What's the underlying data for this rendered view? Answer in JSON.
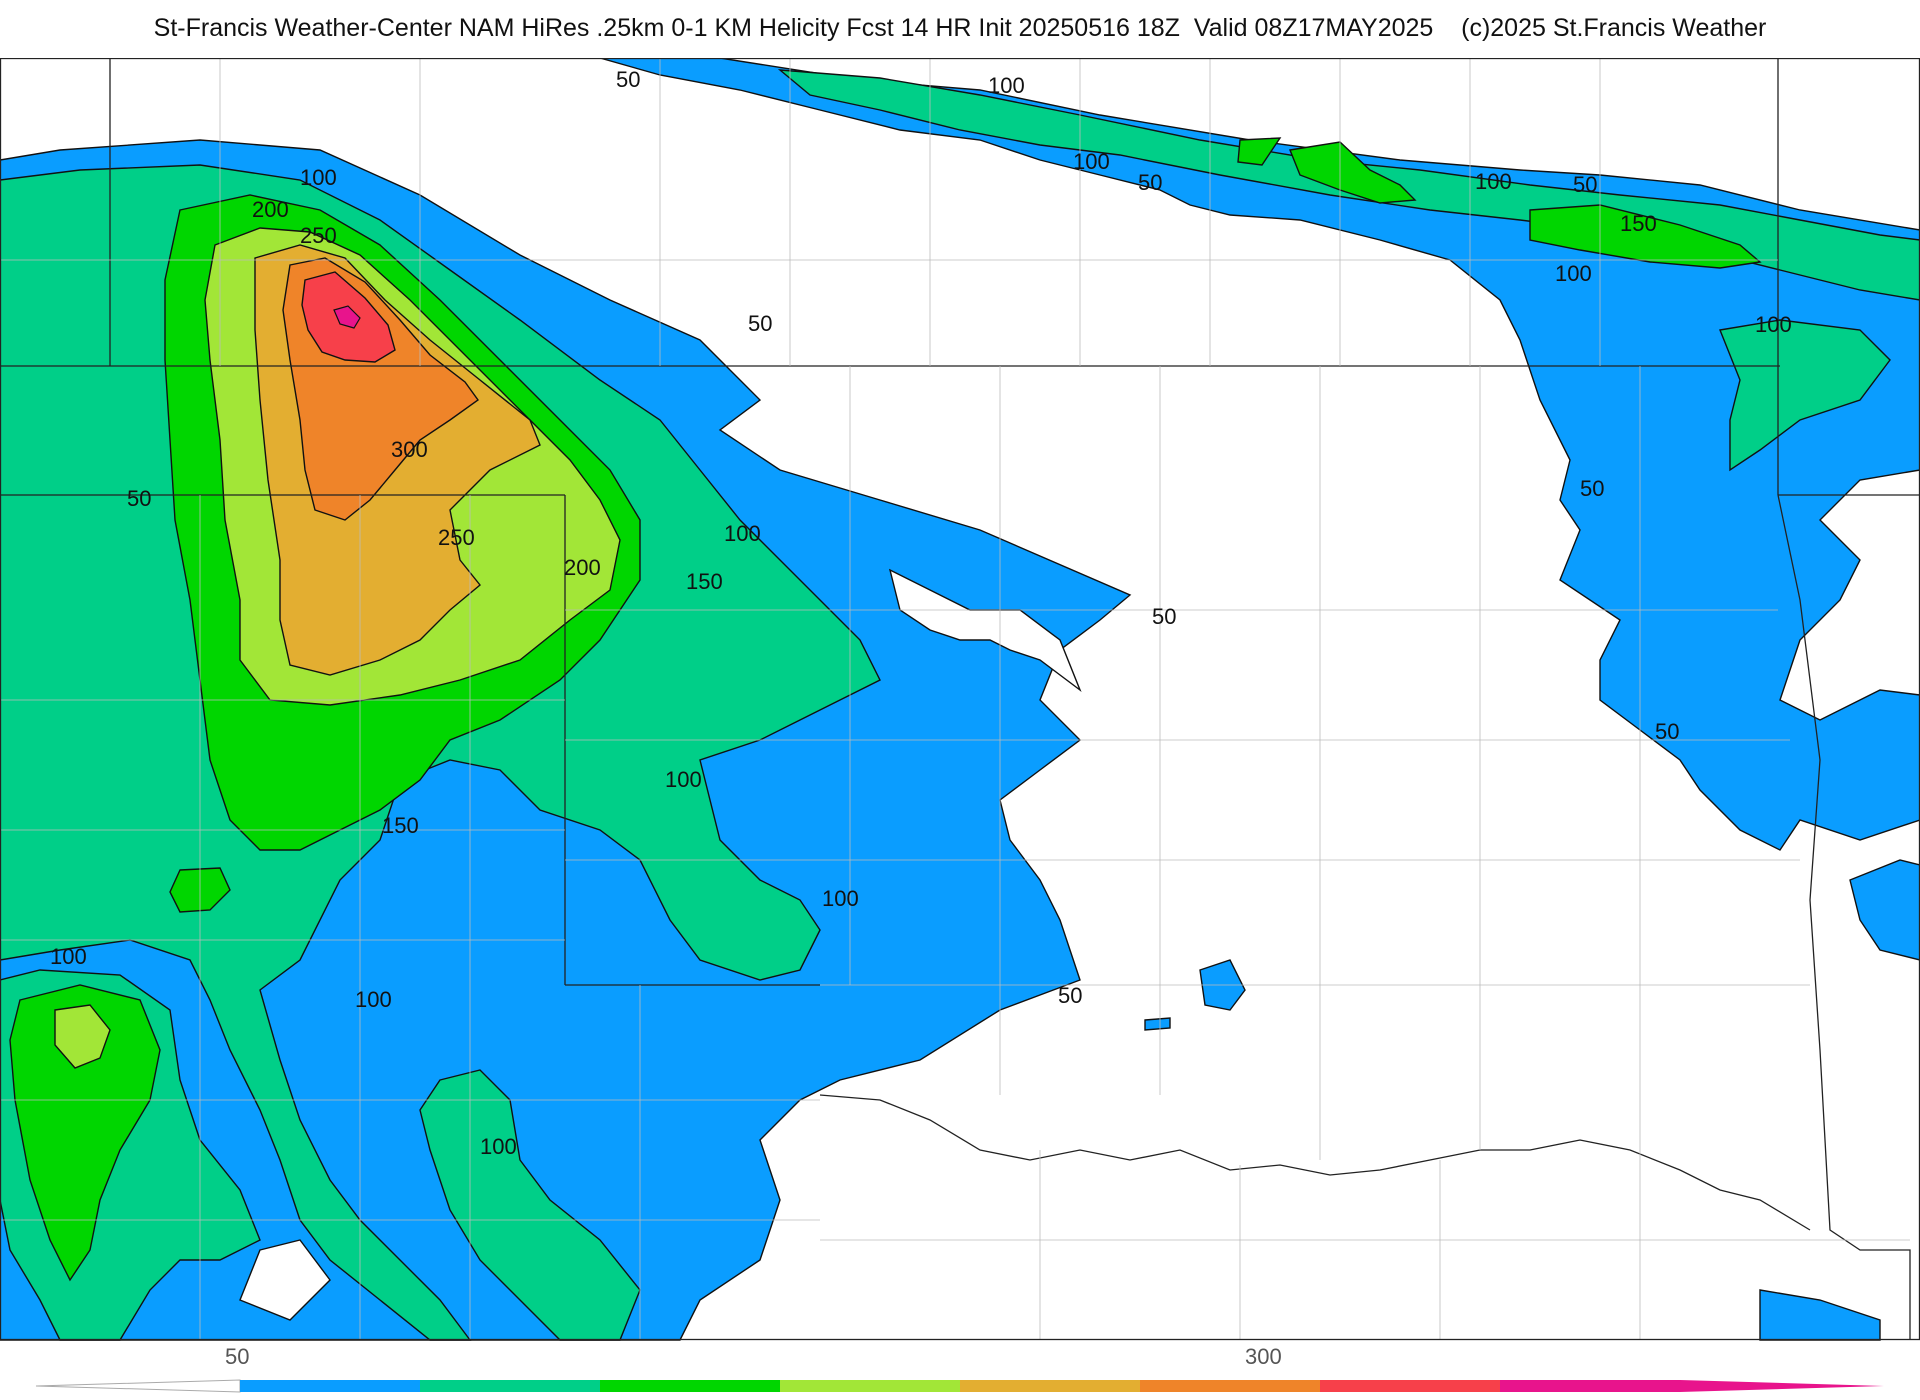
{
  "title": "St-Francis Weather-Center NAM HiRes .25km 0-1 KM Helicity Fcst 14 HR Init 20250516 18Z  Valid 08Z17MAY2025    (c)2025 St.Francis Weather",
  "colorbar": {
    "tick_labels": [
      "50",
      "300"
    ],
    "bins": [
      {
        "range": "50-100",
        "color": "#0a9dff"
      },
      {
        "range": "100-150",
        "color": "#00cf88"
      },
      {
        "range": "150-200",
        "color": "#00d600"
      },
      {
        "range": "200-250",
        "color": "#a2e637"
      },
      {
        "range": "250-300",
        "color": "#e3ae31"
      },
      {
        "range": "300-350",
        "color": "#ef8429"
      },
      {
        "range": "350-400",
        "color": "#f7404a"
      },
      {
        "range": "400+",
        "color": "#e8148c"
      }
    ]
  },
  "contour_labels": [
    {
      "text": "50"
    },
    {
      "text": "100"
    },
    {
      "text": "100"
    },
    {
      "text": "50"
    },
    {
      "text": "100"
    },
    {
      "text": "50"
    },
    {
      "text": "150"
    },
    {
      "text": "100"
    },
    {
      "text": "100"
    },
    {
      "text": "100"
    },
    {
      "text": "200"
    },
    {
      "text": "250"
    },
    {
      "text": "50"
    },
    {
      "text": "300"
    },
    {
      "text": "50"
    },
    {
      "text": "250"
    },
    {
      "text": "100"
    },
    {
      "text": "200"
    },
    {
      "text": "150"
    },
    {
      "text": "50"
    },
    {
      "text": "50"
    },
    {
      "text": "50"
    },
    {
      "text": "100"
    },
    {
      "text": "150"
    },
    {
      "text": "100"
    },
    {
      "text": "100"
    },
    {
      "text": "100"
    },
    {
      "text": "50"
    },
    {
      "text": "100"
    }
  ]
}
